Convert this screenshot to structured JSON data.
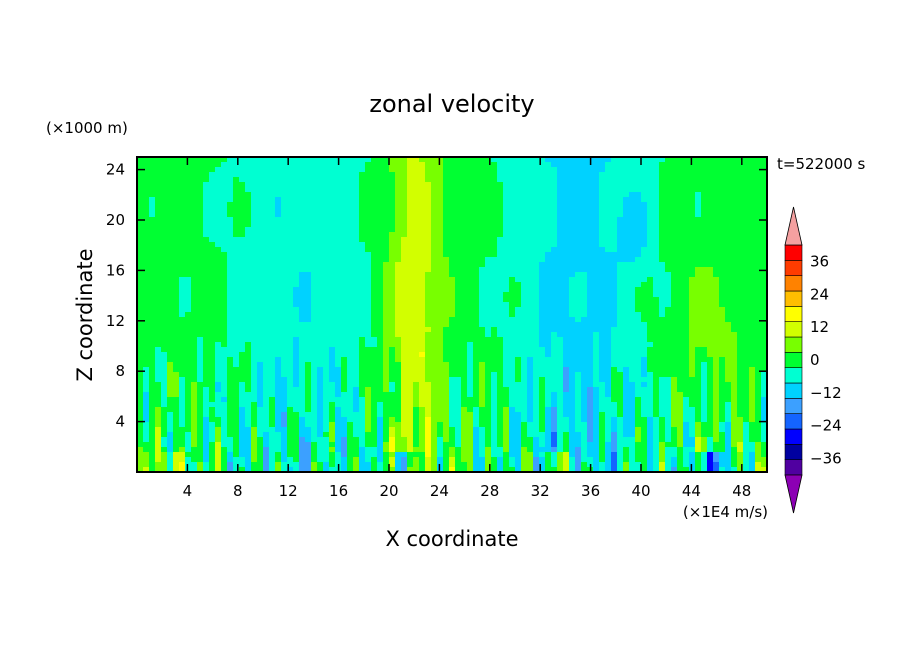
{
  "chart_data": {
    "type": "heatmap",
    "title": "zonal velocity",
    "xlabel": "X coordinate",
    "ylabel": "Z coordinate",
    "x_units": "(×1E4 m/s)",
    "y_units": "(×1000 m)",
    "time_label": "t=522000 s",
    "xlim": [
      0,
      50
    ],
    "ylim": [
      0,
      25
    ],
    "x_ticks": [
      4,
      8,
      12,
      16,
      20,
      24,
      28,
      32,
      36,
      40,
      44,
      48
    ],
    "y_ticks": [
      4,
      8,
      12,
      16,
      20,
      24
    ],
    "colorbar": {
      "tick_labels": [
        "36",
        "24",
        "12",
        "0",
        "−12",
        "−24",
        "−36"
      ],
      "tick_values": [
        36,
        24,
        12,
        0,
        -12,
        -24,
        -36
      ],
      "levels": [
        -42,
        -36,
        -30,
        -24,
        -18,
        -12,
        -6,
        0,
        6,
        12,
        18,
        24,
        30,
        36,
        42
      ],
      "colors": [
        "#5000a0",
        "#0000a0",
        "#0000ff",
        "#1464ff",
        "#3ca0ff",
        "#00d2ff",
        "#00ffd2",
        "#00ff32",
        "#78ff00",
        "#d2ff00",
        "#ffff00",
        "#ffbe00",
        "#ff8200",
        "#ff3c00",
        "#ff0000"
      ],
      "over_color": "#f4a0a0",
      "under_color": "#8c00b4"
    },
    "grid": false
  }
}
